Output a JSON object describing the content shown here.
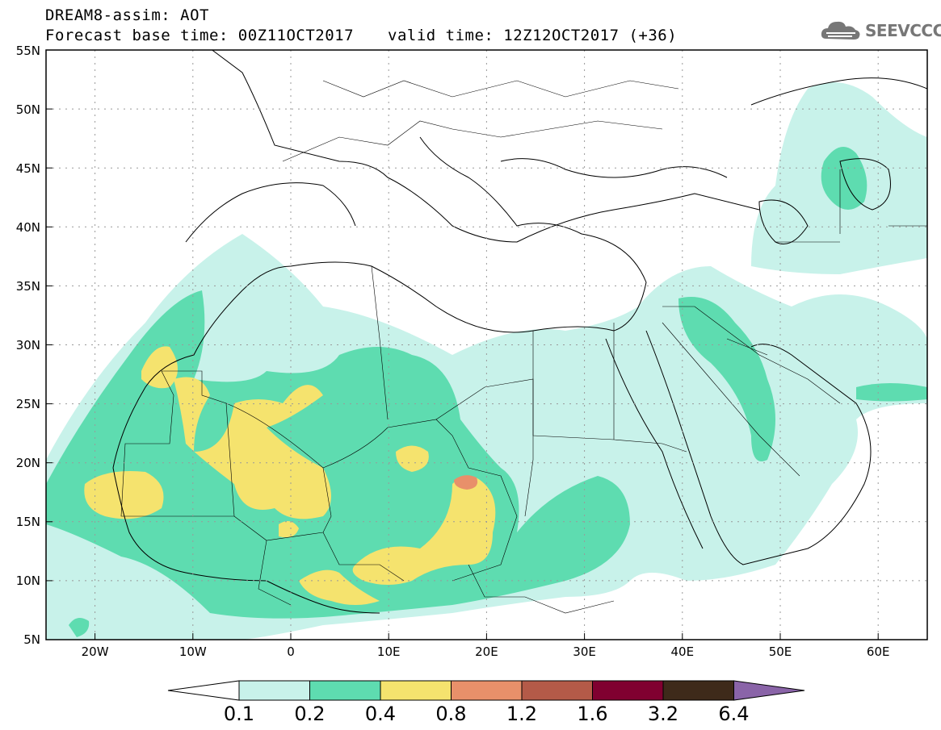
{
  "header": {
    "title_line1": "DREAM8-assim: AOT",
    "base_time": "Forecast base time: 00Z11OCT2017",
    "valid_time": "valid time: 12Z12OCT2017 (+36)"
  },
  "logo": {
    "text": "SEEVCCC",
    "icon": "cloud-logo-icon"
  },
  "axes": {
    "lat_labels": [
      "55N",
      "50N",
      "45N",
      "40N",
      "35N",
      "30N",
      "25N",
      "20N",
      "15N",
      "10N",
      "5N"
    ],
    "lon_labels": [
      "20W",
      "10W",
      "0",
      "10E",
      "20E",
      "30E",
      "40E",
      "50E",
      "60E"
    ],
    "lat_range": [
      5,
      55
    ],
    "lon_range": [
      -25,
      65
    ]
  },
  "colorbar": {
    "labels": [
      "0.1",
      "0.2",
      "0.4",
      "0.8",
      "1.2",
      "1.6",
      "3.2",
      "6.4"
    ],
    "colors": [
      "#c8f2ea",
      "#5edcb0",
      "#f5e36e",
      "#e8906a",
      "#b45a48",
      "#800030",
      "#3e2a1a",
      "#8a64a8"
    ],
    "under_color": "#ffffff"
  }
}
